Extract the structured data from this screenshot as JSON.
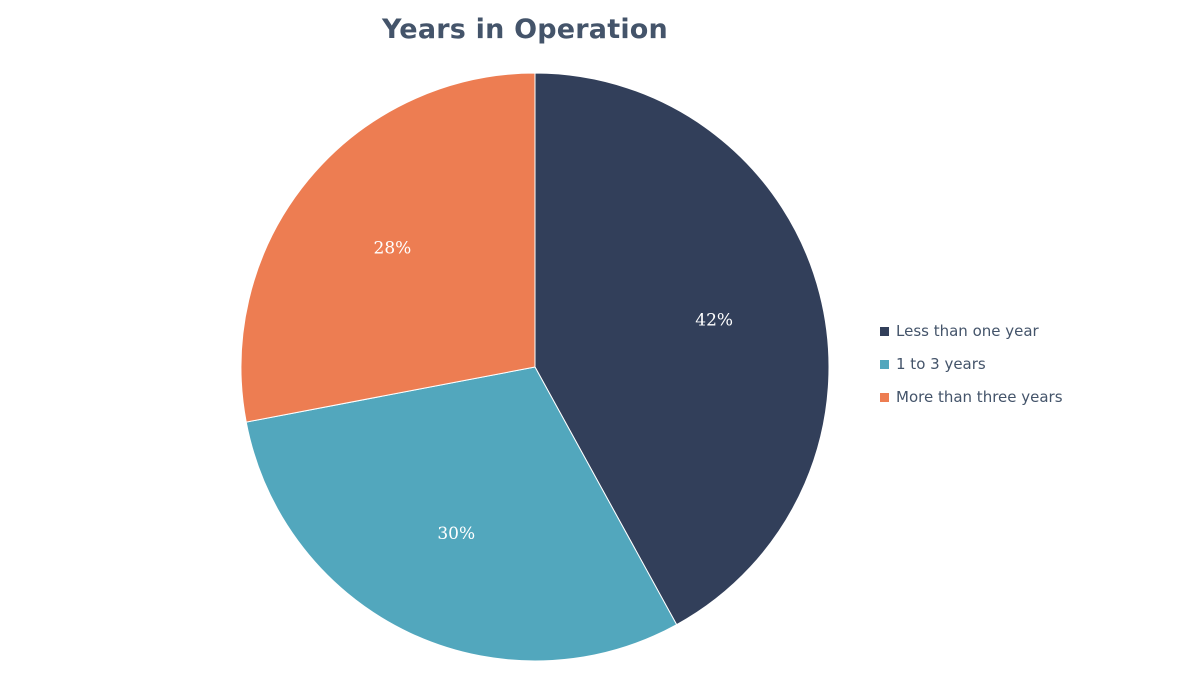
{
  "chart_data": {
    "type": "pie",
    "title": "Years in Operation",
    "categories": [
      "Less than one year",
      "1 to 3 years",
      "More than three years"
    ],
    "values": [
      42,
      30,
      28
    ],
    "value_labels": [
      "42%",
      "30%",
      "28%"
    ],
    "colors": [
      "#323f5a",
      "#52a7bd",
      "#ed7d52"
    ],
    "legend_placement": "right",
    "start_angle": "12 o'clock",
    "direction": "clockwise"
  }
}
